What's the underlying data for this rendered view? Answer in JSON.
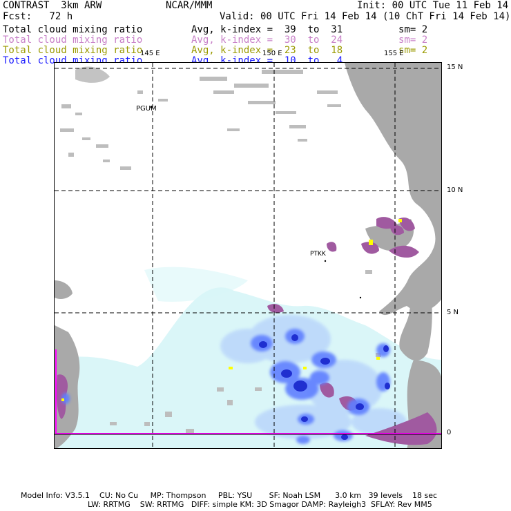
{
  "header": {
    "left": {
      "line1": "CONTRAST  3km ARW",
      "line2": "Fcst:   72 h"
    },
    "center": {
      "line1": "NCAR/MMM"
    },
    "right": {
      "init": "Init: 00 UTC Tue 11 Feb 14",
      "valid": "Valid: 00 UTC Fri 14 Feb 14 (10 ChT Fri 14 Feb 14)"
    },
    "fields": [
      {
        "name": "Total cloud mixing ratio",
        "kindex": "Avg, k-index =  39  to  31",
        "sm": "sm= 2",
        "color": "#000000"
      },
      {
        "name": "Total cloud mixing ratio",
        "kindex": "Avg, k-index =  30  to  24",
        "sm": "sm= 2",
        "color": "#c77fc7"
      },
      {
        "name": "Total cloud mixing ratio",
        "kindex": "Avg, k-index =  23  to  18",
        "sm": "sm= 2",
        "color": "#9a9a00"
      },
      {
        "name": "Total cloud mixing ratio",
        "kindex": "Avg, k-index =  10  to   4",
        "sm": "",
        "color": "#1a1aff"
      }
    ]
  },
  "map": {
    "lon_labels": [
      "145 E",
      "150 E",
      "155 E"
    ],
    "lat_labels": [
      "15 N",
      "10 N",
      "5 N",
      "0"
    ],
    "stations": [
      "PGUM",
      "PTKK"
    ]
  },
  "footer": {
    "line1": "Model Info: V3.5.1    CU: No Cu     MP: Thompson     PBL: YSU       SF: Noah LSM      3.0 km   39 levels    18 sec",
    "line2": "LW: RRTMG    SW: RRTMG   DIFF: simple KM: 3D Smagor DAMP: Rayleigh3  SFLAY: Rev MM5"
  },
  "colors": {
    "gray_cloud": "#a9a9a9",
    "purple_cloud": "#a05aa0",
    "light_cyan": "#d8f6f8",
    "blue_mid": "#5f7fff",
    "blue_dark": "#1f2fd0",
    "yellow": "#ffff00",
    "magenta_border": "#ff00ff"
  }
}
